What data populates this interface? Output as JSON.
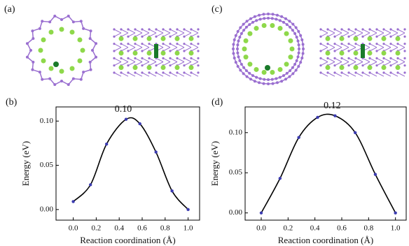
{
  "structure_labels": [
    "(a)",
    "(c)"
  ],
  "chart_data": [
    {
      "type": "line",
      "label": "(b)",
      "annotation": "0.10",
      "xlabel": "Reaction coordination (Å)",
      "ylabel": "Energy (eV)",
      "x": [
        0,
        0.15,
        0.29,
        0.46,
        0.58,
        0.72,
        0.86,
        1.0
      ],
      "series": [
        {
          "color": "#000000",
          "marker_color": "#3b3bb0",
          "values": [
            0.009,
            0.028,
            0.074,
            0.102,
            0.097,
            0.065,
            0.021,
            0.0
          ]
        }
      ],
      "xlim": [
        -0.15,
        1.1
      ],
      "ylim": [
        -0.012,
        0.116
      ],
      "xticks": [
        {
          "value": 0,
          "label": "0.0"
        },
        0.2,
        0.4,
        0.6,
        0.8,
        {
          "value": 1,
          "label": "1.0"
        }
      ],
      "yticks": [
        {
          "value": 0,
          "label": "0.00"
        },
        {
          "value": 0.05,
          "label": "0.05"
        },
        {
          "value": 0.1,
          "label": "0.10"
        }
      ]
    },
    {
      "type": "line",
      "label": "(d)",
      "annotation": "0.12",
      "xlabel": "Reaction coordination (Å)",
      "ylabel": "Energy (eV)",
      "x": [
        0,
        0.14,
        0.28,
        0.42,
        0.55,
        0.7,
        0.85,
        1.0
      ],
      "series": [
        {
          "color": "#000000",
          "marker_color": "#3b3bb0",
          "values": [
            0.0,
            0.043,
            0.094,
            0.119,
            0.121,
            0.1,
            0.048,
            0.0
          ]
        }
      ],
      "xlim": [
        -0.12,
        1.08
      ],
      "ylim": [
        -0.009,
        0.132
      ],
      "xticks": [
        {
          "value": 0,
          "label": "0.0"
        },
        0.2,
        0.4,
        0.6,
        0.8,
        {
          "value": 1,
          "label": "1.0"
        }
      ],
      "yticks": [
        {
          "value": 0,
          "label": "0.00"
        },
        {
          "value": 0.05,
          "label": "0.05"
        },
        {
          "value": 0.1,
          "label": "0.10"
        }
      ]
    }
  ]
}
